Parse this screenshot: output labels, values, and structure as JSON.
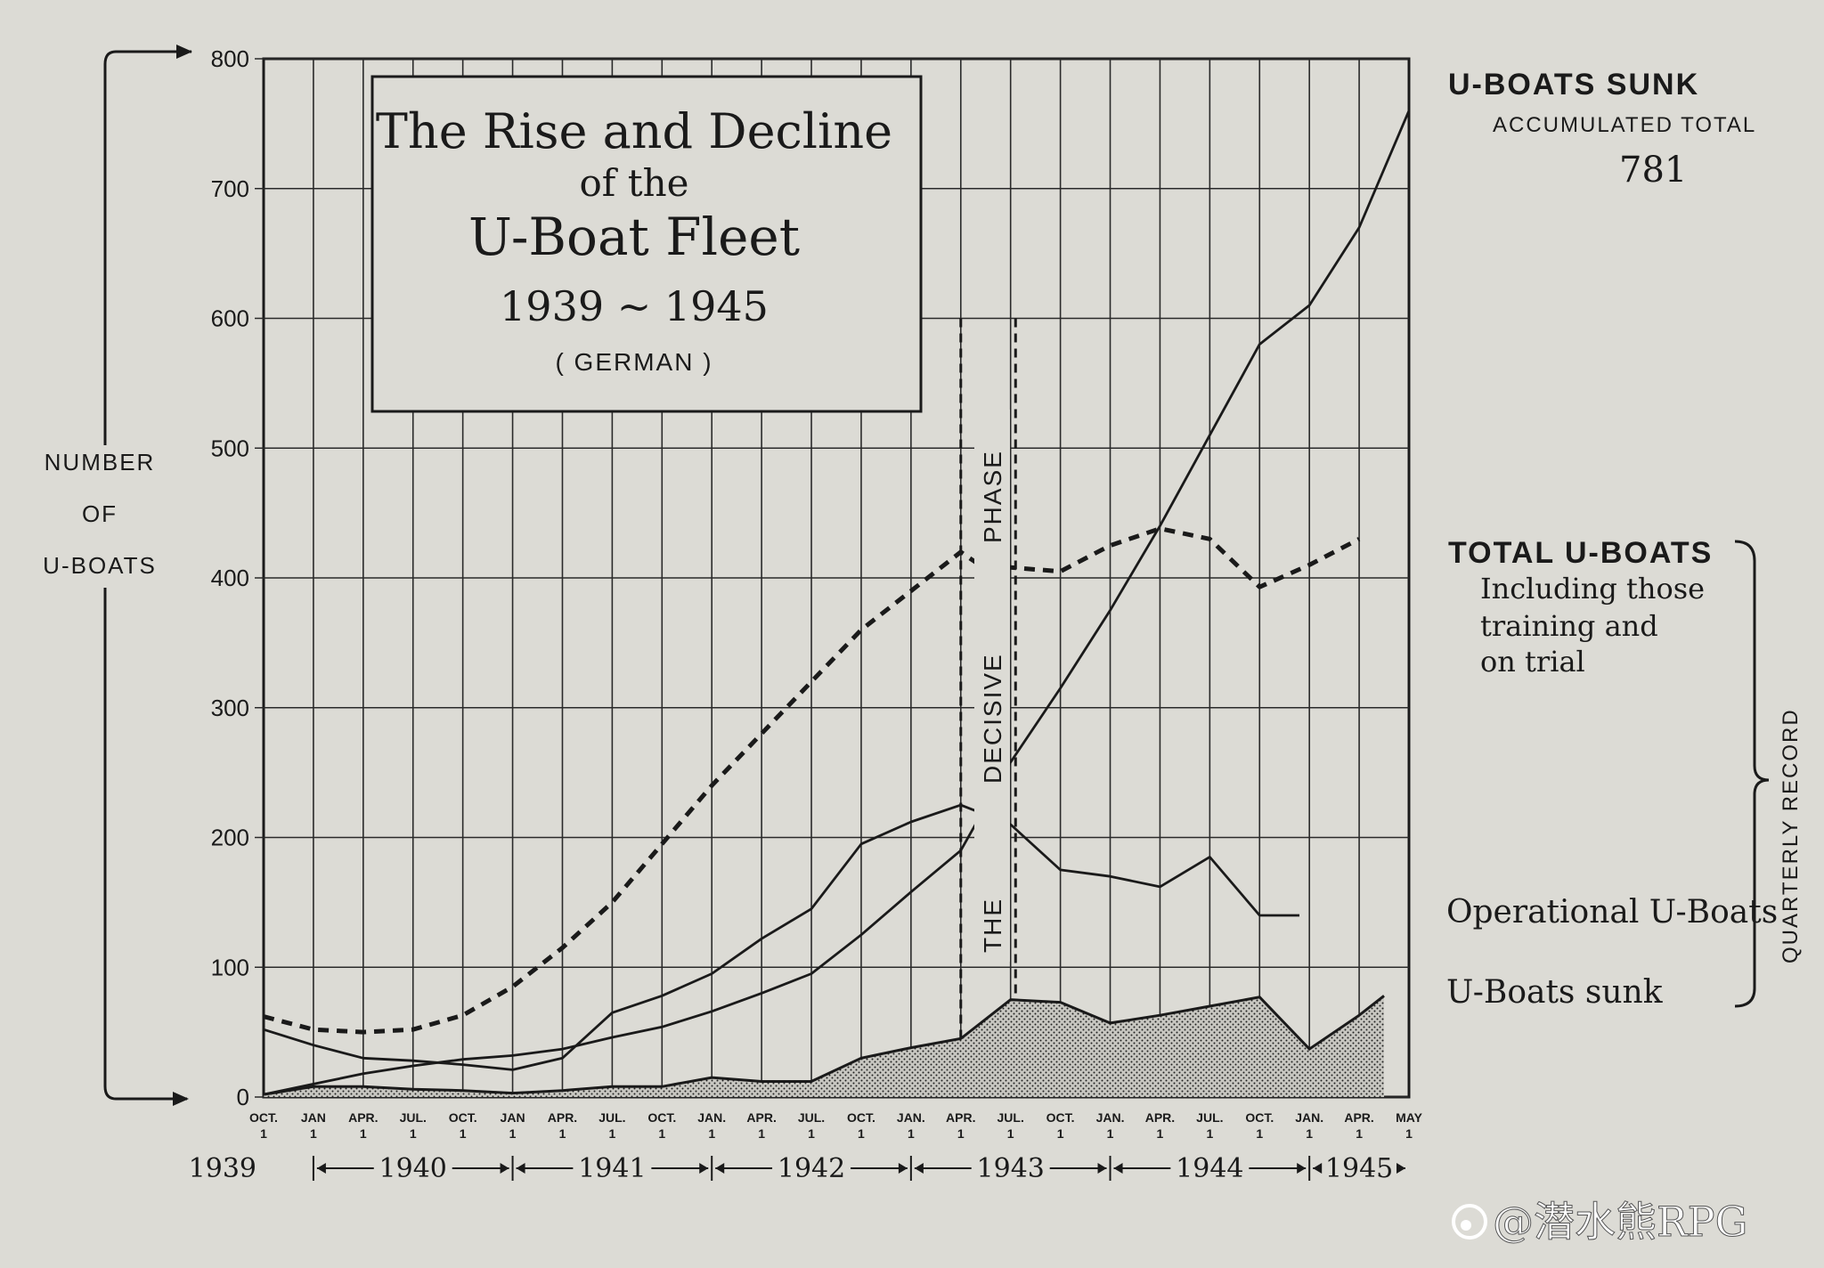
{
  "colors": {
    "paper": "#dcdbd5",
    "ink": "#1a1a1a",
    "grid": "#2a2a2a"
  },
  "title_box": {
    "line1": "The Rise and Decline",
    "line2": "of the",
    "line3": "U-Boat Fleet",
    "line4": "1939 ~ 1945",
    "line5": "( GERMAN )"
  },
  "left_label": {
    "line1": "NUMBER",
    "line2": "OF",
    "line3": "U-BOATS"
  },
  "right_labels": {
    "sunk_title": "U-BOATS SUNK",
    "sunk_subtitle": "ACCUMULATED TOTAL",
    "sunk_total": "781",
    "total_title": "TOTAL U-BOATS",
    "total_note1": "Including those",
    "total_note2": "training and",
    "total_note3": "on trial",
    "operational": "Operational U-Boats",
    "sunk_quarterly": "U-Boats sunk",
    "bracket_label": "QUARTERLY  RECORD"
  },
  "phase_label": {
    "the": "THE",
    "decisive": "DECISIVE",
    "phase": "PHASE"
  },
  "watermark": "@潜水熊RPG",
  "chart_data": {
    "type": "line",
    "title": "The Rise and Decline of the U-Boat Fleet 1939 ~ 1945 (GERMAN)",
    "ylabel": "NUMBER OF U-BOATS",
    "ylim": [
      0,
      800
    ],
    "yticks": [
      "0",
      "100",
      "200",
      "300",
      "400",
      "500",
      "600",
      "700",
      "800"
    ],
    "x_tick_labels": [
      {
        "m": "OCT.",
        "d": "1"
      },
      {
        "m": "JAN",
        "d": "1"
      },
      {
        "m": "APR.",
        "d": "1"
      },
      {
        "m": "JUL.",
        "d": "1"
      },
      {
        "m": "OCT.",
        "d": "1"
      },
      {
        "m": "JAN",
        "d": "1"
      },
      {
        "m": "APR.",
        "d": "1"
      },
      {
        "m": "JUL.",
        "d": "1"
      },
      {
        "m": "OCT.",
        "d": "1"
      },
      {
        "m": "JAN.",
        "d": "1"
      },
      {
        "m": "APR.",
        "d": "1"
      },
      {
        "m": "JUL.",
        "d": "1"
      },
      {
        "m": "OCT.",
        "d": "1"
      },
      {
        "m": "JAN.",
        "d": "1"
      },
      {
        "m": "APR.",
        "d": "1"
      },
      {
        "m": "JUL.",
        "d": "1"
      },
      {
        "m": "OCT.",
        "d": "1"
      },
      {
        "m": "JAN.",
        "d": "1"
      },
      {
        "m": "APR.",
        "d": "1"
      },
      {
        "m": "JUL.",
        "d": "1"
      },
      {
        "m": "OCT.",
        "d": "1"
      },
      {
        "m": "JAN.",
        "d": "1"
      },
      {
        "m": "APR.",
        "d": "1"
      },
      {
        "m": "MAY",
        "d": "1"
      }
    ],
    "x_index_range": [
      0,
      23
    ],
    "years": [
      {
        "label": "1939",
        "from": 0,
        "to": 0
      },
      {
        "label": "1940",
        "from": 1,
        "to": 5
      },
      {
        "label": "1941",
        "from": 5,
        "to": 9
      },
      {
        "label": "1942",
        "from": 9,
        "to": 13
      },
      {
        "label": "1943",
        "from": 13,
        "to": 17
      },
      {
        "label": "1944",
        "from": 17,
        "to": 21
      },
      {
        "label": "1945",
        "from": 21,
        "to": 23
      }
    ],
    "decisive_phase": [
      14.0,
      15.1
    ],
    "series": [
      {
        "name": "TOTAL U-BOATS",
        "style": "dashed",
        "x": [
          0,
          1,
          2,
          3,
          4,
          5,
          6,
          7,
          8,
          9,
          10,
          11,
          12,
          13,
          14,
          14.3,
          15,
          16,
          17,
          18,
          19,
          20,
          21,
          22
        ],
        "values": [
          62,
          52,
          50,
          52,
          63,
          85,
          115,
          150,
          195,
          240,
          280,
          320,
          360,
          390,
          420,
          412,
          408,
          405,
          425,
          438,
          430,
          393,
          410,
          430
        ]
      },
      {
        "name": "U-BOATS SUNK ACCUMULATED TOTAL",
        "style": "solid",
        "x": [
          0,
          1,
          2,
          3,
          4,
          5,
          6,
          7,
          8,
          9,
          10,
          11,
          12,
          13,
          14,
          15,
          16,
          17,
          18,
          19,
          20,
          21,
          22,
          23
        ],
        "values": [
          2,
          10,
          18,
          24,
          29,
          32,
          37,
          46,
          54,
          66,
          80,
          95,
          125,
          158,
          190,
          258,
          315,
          375,
          440,
          510,
          580,
          610,
          670,
          760
        ]
      },
      {
        "name": "Operational U-Boats",
        "style": "solid",
        "x": [
          0,
          1,
          2,
          3,
          4,
          5,
          6,
          7,
          8,
          9,
          10,
          11,
          12,
          13,
          14,
          15,
          16,
          17,
          18,
          19,
          20,
          20.8
        ],
        "values": [
          52,
          40,
          30,
          28,
          25,
          21,
          30,
          65,
          78,
          95,
          122,
          145,
          195,
          212,
          225,
          210,
          175,
          170,
          162,
          185,
          140,
          140
        ]
      },
      {
        "name": "U-Boats sunk",
        "style": "hatched-area",
        "x": [
          0,
          1,
          2,
          3,
          4,
          5,
          6,
          7,
          8,
          9,
          10,
          11,
          12,
          13,
          14,
          15,
          16,
          17,
          18,
          19,
          20,
          21,
          22,
          22.5
        ],
        "values": [
          2,
          8,
          8,
          6,
          5,
          3,
          5,
          8,
          8,
          15,
          12,
          12,
          30,
          38,
          45,
          75,
          73,
          57,
          63,
          70,
          77,
          37,
          63,
          78
        ]
      }
    ]
  }
}
